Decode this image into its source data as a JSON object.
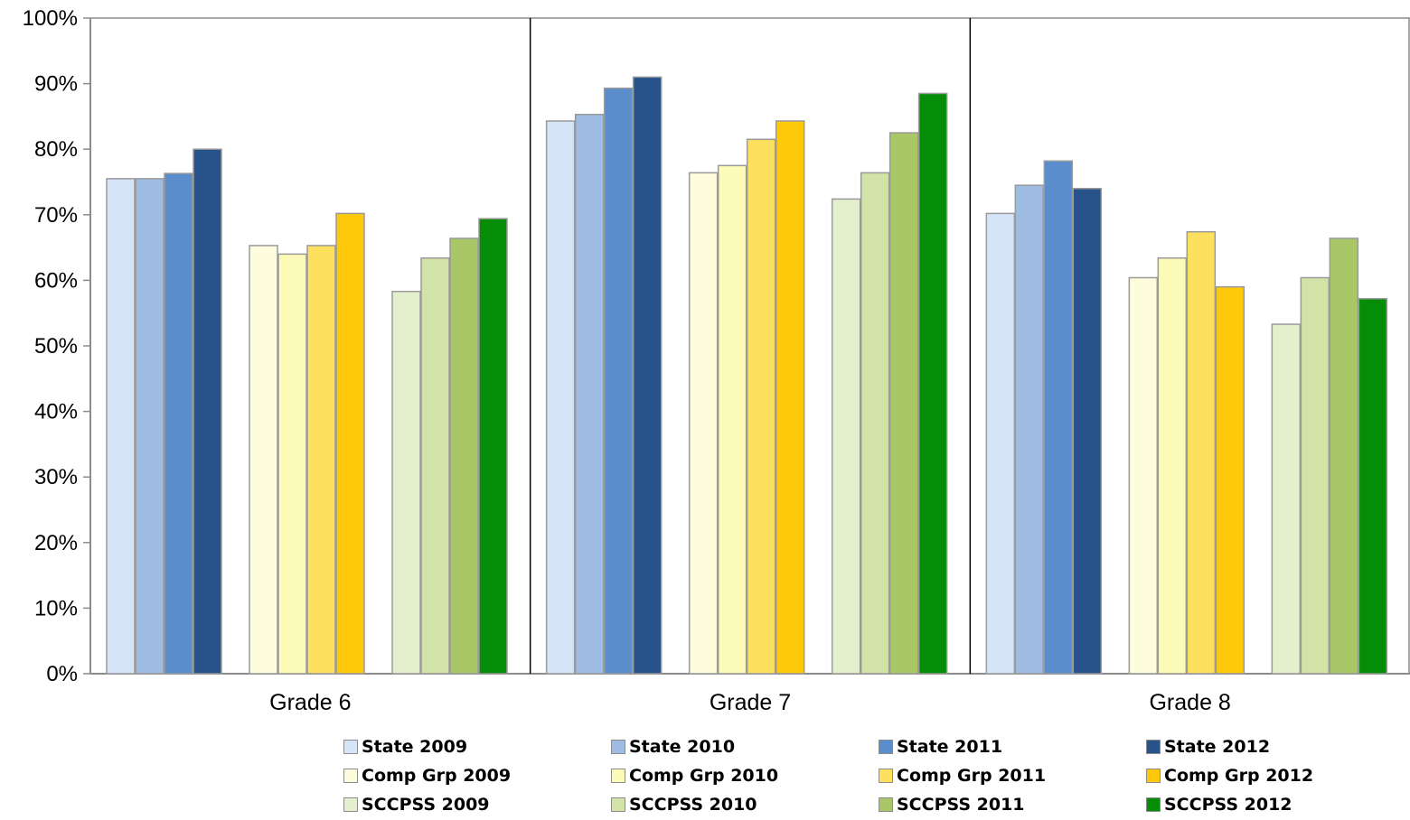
{
  "chart_data": {
    "type": "bar",
    "categories": [
      "Grade 6",
      "Grade 7",
      "Grade 8"
    ],
    "ylim": [
      0,
      100
    ],
    "yticks": [
      "0%",
      "10%",
      "20%",
      "30%",
      "40%",
      "50%",
      "60%",
      "70%",
      "80%",
      "90%",
      "100%"
    ],
    "grid": false,
    "legend_position": "bottom",
    "groups": [
      {
        "series": [
          {
            "name": "State 2009",
            "color": "#d6e4f7",
            "values": [
              75.5,
              84.3,
              70.2
            ]
          },
          {
            "name": "State 2010",
            "color": "#9fbde3",
            "values": [
              75.5,
              85.3,
              74.5
            ]
          },
          {
            "name": "State 2011",
            "color": "#5a8dcb",
            "values": [
              76.3,
              89.3,
              78.2
            ]
          },
          {
            "name": "State 2012",
            "color": "#28538a",
            "values": [
              80.0,
              91.0,
              74.0
            ]
          }
        ]
      },
      {
        "series": [
          {
            "name": "Comp Grp 2009",
            "color": "#fdfcdc",
            "values": [
              65.3,
              76.4,
              60.4
            ]
          },
          {
            "name": "Comp Grp 2010",
            "color": "#fdfbb8",
            "values": [
              64.0,
              77.5,
              63.4
            ]
          },
          {
            "name": "Comp Grp 2011",
            "color": "#fde05e",
            "values": [
              65.3,
              81.5,
              67.4
            ]
          },
          {
            "name": "Comp Grp 2012",
            "color": "#fec80b",
            "values": [
              70.2,
              84.3,
              59.0
            ]
          }
        ]
      },
      {
        "series": [
          {
            "name": "SCCPSS 2009",
            "color": "#e4f0cd",
            "values": [
              58.3,
              72.4,
              53.3
            ]
          },
          {
            "name": "SCCPSS 2010",
            "color": "#d2e3a8",
            "values": [
              63.4,
              76.4,
              60.4
            ]
          },
          {
            "name": "SCCPSS 2011",
            "color": "#a9c766",
            "values": [
              66.4,
              82.5,
              66.4
            ]
          },
          {
            "name": "SCCPSS 2012",
            "color": "#058d07",
            "values": [
              69.4,
              88.5,
              57.2
            ]
          }
        ]
      }
    ]
  }
}
